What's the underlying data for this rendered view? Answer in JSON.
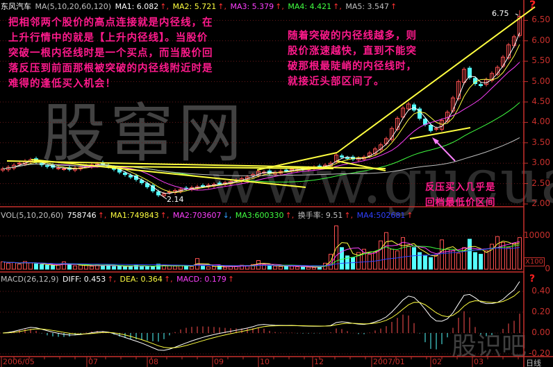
{
  "stock_name": "东风汽车",
  "price_header": {
    "label": "MA(5,10,20,60,120)",
    "ma1": "MA1: 6.082",
    "ma2": "MA2: 5.721",
    "ma3": "MA3: 5.379",
    "ma4": "MA4: 4.421",
    "ma5": "MA5: 3.547"
  },
  "vol_header": {
    "label": "VOL(5,10,20,60)",
    "vol": "758746",
    "ma1": "MA1:749843",
    "ma2": "MA2:703607",
    "ma3": "MA3:600330",
    "turnover": "换手率: 9.51",
    "ma4": "MA4:502681"
  },
  "macd_header": {
    "label": "MACD(26,12,9)",
    "diff": "DIFF: 0.453",
    "dea": "DEA: 0.364",
    "macd": "MACD: 0.179"
  },
  "notes": {
    "top_left": "把相邻两个股价的高点连接就是内径线，在\n上升行情中的就是【上升内径线】。当股价\n突破一根内径线时是一个买点，而当股价回\n落反压到前面那根被突破的内径线附近时是\n难得的逢低买入机会！",
    "top_right": "随着突破的内径线越多，则\n股价涨速越快，直到不能突\n破那根最陡峭的内径线时，\n就接近头部区间了。",
    "bottom_right": "反压买入几乎是\n回档最低价区间"
  },
  "watermarks": {
    "main": "股窜网",
    "url": "www.gucuan.com",
    "corner": "股识吧"
  },
  "question_mark": "?",
  "period": "日线",
  "volume_unit": "X100",
  "colors": {
    "up": "#ff5050",
    "down": "#54ffff",
    "trendline": "#ffff40",
    "axis": "#c8302c",
    "ma1": "#ffffff",
    "ma2": "#ffff40",
    "ma3": "#ff40ff",
    "ma4": "#40ff40",
    "ma5": "#c0c0c0",
    "vma4": "#3040ff"
  },
  "chart_data": [
    {
      "type": "candlestick",
      "title": "东风汽车",
      "y_ticks": [
        "6.50",
        "6.00",
        "5.50",
        "5.00",
        "4.50",
        "4.00",
        "3.50",
        "3.00",
        "2.50",
        "2.00"
      ],
      "ylim": [
        2.0,
        6.75
      ],
      "x_ticks": [
        "2006/05",
        "07",
        "08",
        "09",
        "10",
        "12",
        "2007/01",
        "02",
        "03"
      ],
      "annotations": {
        "high_label": "6.75",
        "low_label": "2.14"
      },
      "close": [
        2.86,
        2.9,
        2.95,
        3.0,
        3.05,
        3.08,
        3.02,
        2.96,
        2.92,
        2.9,
        2.88,
        2.86,
        2.85,
        2.88,
        2.9,
        2.93,
        2.96,
        2.98,
        2.97,
        2.92,
        2.85,
        2.78,
        2.72,
        2.66,
        2.6,
        2.52,
        2.42,
        2.32,
        2.22,
        2.25,
        2.3,
        2.33,
        2.36,
        2.38,
        2.4,
        2.42,
        2.44,
        2.46,
        2.48,
        2.5,
        2.52,
        2.55,
        2.58,
        2.62,
        2.66,
        2.72,
        2.8,
        2.78,
        2.75,
        2.77,
        2.8,
        2.82,
        2.85,
        2.84,
        2.86,
        2.88,
        2.9,
        2.92,
        2.95,
        3.0,
        3.2,
        3.15,
        3.12,
        3.1,
        3.12,
        3.15,
        3.25,
        3.35,
        3.45,
        3.6,
        3.85,
        4.1,
        4.35,
        4.45,
        4.3,
        4.1,
        3.95,
        3.8,
        3.85,
        4.05,
        4.25,
        4.6,
        5.0,
        5.3,
        5.1,
        4.95,
        4.9,
        5.05,
        5.2,
        5.35,
        5.6,
        5.9,
        6.1,
        6.6
      ]
    },
    {
      "type": "bar",
      "title": "VOL",
      "y_ticks": [
        "10000",
        "0"
      ],
      "values": [
        2200,
        1800,
        2000,
        1500,
        2300,
        1900,
        1600,
        1400,
        1200,
        1100,
        1300,
        2200,
        1500,
        1000,
        1200,
        1100,
        900,
        1300,
        1000,
        1400,
        800,
        900,
        700,
        1000,
        1200,
        900,
        800,
        700,
        1500,
        1200,
        1000,
        900,
        1100,
        1000,
        800,
        3200,
        900,
        700,
        800,
        1000,
        600,
        800,
        900,
        1200,
        1000,
        1400,
        2600,
        1300,
        1000,
        900,
        800,
        1100,
        900,
        700,
        800,
        600,
        500,
        700,
        1800,
        4500,
        13000,
        6500,
        4000,
        3500,
        5000,
        6000,
        4500,
        5200,
        8500,
        11000,
        6000,
        5500,
        9500,
        7000,
        6500,
        5000,
        4000,
        3500,
        4200,
        8800,
        6000,
        5500,
        4800,
        6500,
        9000,
        5000,
        4500,
        5500,
        7500,
        9800,
        8000,
        6500,
        7800,
        9500
      ]
    },
    {
      "type": "bar",
      "title": "MACD",
      "y_ticks": [
        "0.40",
        "0.20",
        "0.00",
        "-0.20"
      ]
    }
  ]
}
